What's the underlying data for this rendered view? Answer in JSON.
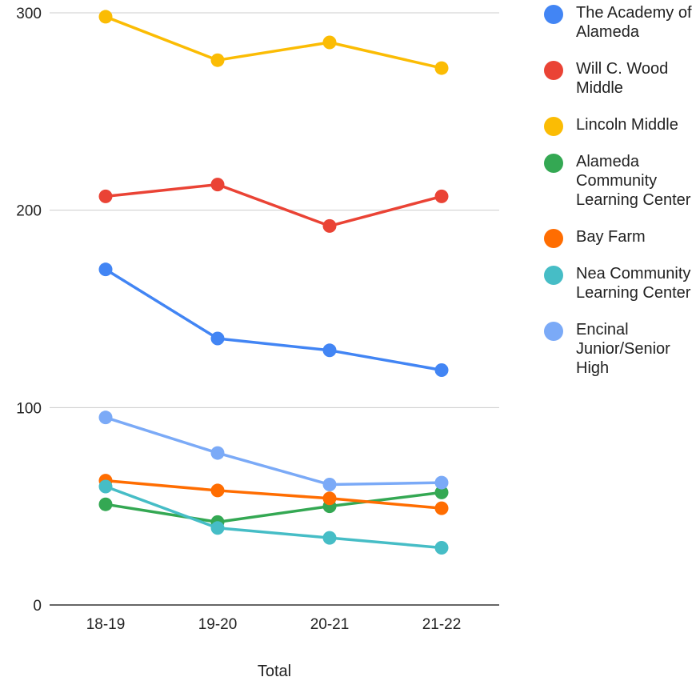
{
  "chart_data": {
    "type": "line",
    "title": "",
    "xlabel": "Total",
    "ylabel": "",
    "categories": [
      "18-19",
      "19-20",
      "20-21",
      "21-22"
    ],
    "ylim": [
      0,
      300
    ],
    "yticks": [
      "0",
      "100",
      "200",
      "300"
    ],
    "grid": true,
    "legend_position": "right",
    "series": [
      {
        "name": "The Academy of Alameda",
        "color": "#4285f4",
        "values": [
          170,
          135,
          129,
          119
        ]
      },
      {
        "name": "Will C. Wood Middle",
        "color": "#ea4335",
        "values": [
          207,
          213,
          192,
          207
        ]
      },
      {
        "name": "Lincoln Middle",
        "color": "#fbbc04",
        "values": [
          298,
          276,
          285,
          272
        ]
      },
      {
        "name": "Alameda Community Learning Center",
        "color": "#34a853",
        "values": [
          51,
          42,
          50,
          57
        ]
      },
      {
        "name": "Bay Farm",
        "color": "#ff6d01",
        "values": [
          63,
          58,
          54,
          49
        ]
      },
      {
        "name": "Nea Community Learning Center",
        "color": "#46bdc6",
        "values": [
          60,
          39,
          34,
          29
        ]
      },
      {
        "name": "Encinal Junior/Senior High",
        "color": "#7baaf7",
        "values": [
          95,
          77,
          61,
          62
        ]
      }
    ]
  }
}
